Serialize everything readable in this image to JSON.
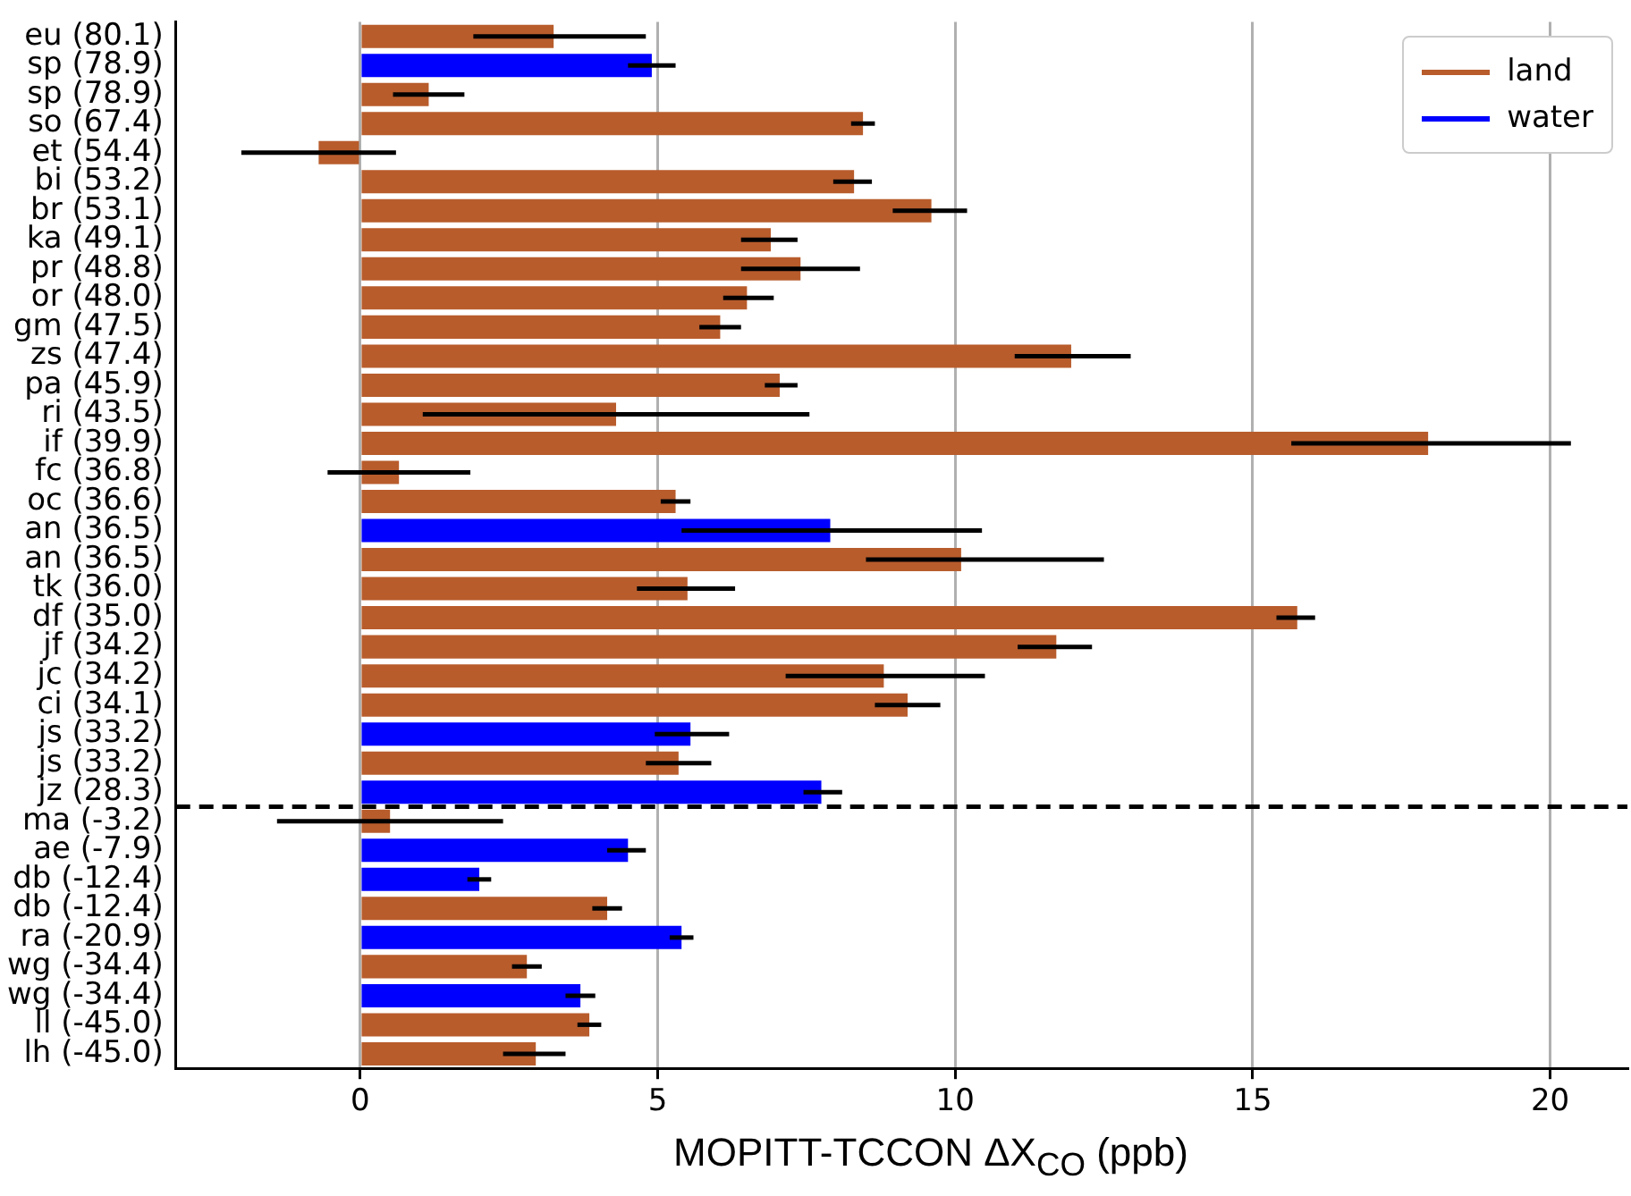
{
  "chart_data": {
    "type": "bar",
    "orientation": "horizontal",
    "xlabel": "MOPITT-TCCON  ΔX$_{CO}$ (ppb)",
    "categories": [
      "eu (80.1)",
      "sp (78.9)",
      "sp (78.9)",
      "so (67.4)",
      "et (54.4)",
      "bi (53.2)",
      "br (53.1)",
      "ka (49.1)",
      "pr (48.8)",
      "or (48.0)",
      "gm (47.5)",
      "zs (47.4)",
      "pa (45.9)",
      "ri (43.5)",
      "if (39.9)",
      "fc (36.8)",
      "oc (36.6)",
      "an (36.5)",
      "an (36.5)",
      "tk (36.0)",
      "df (35.0)",
      "jf (34.2)",
      "jc (34.2)",
      "ci (34.1)",
      "js (33.2)",
      "js (33.2)",
      "jz (28.3)",
      "ma (-3.2)",
      "ae (-7.9)",
      "db (-12.4)",
      "db (-12.4)",
      "ra (-20.9)",
      "wg (-34.4)",
      "wg (-34.4)",
      "ll (-45.0)",
      "lh (-45.0)"
    ],
    "series": [
      {
        "name": "land",
        "color": "#b85c2c",
        "values": [
          3.25,
          null,
          1.15,
          8.45,
          -0.7,
          8.3,
          9.6,
          6.9,
          7.4,
          6.5,
          6.05,
          11.95,
          7.05,
          4.3,
          17.95,
          0.65,
          5.3,
          null,
          10.1,
          5.5,
          15.75,
          11.7,
          8.8,
          9.2,
          null,
          5.35,
          null,
          0.5,
          null,
          null,
          4.15,
          null,
          2.8,
          null,
          3.85,
          2.95
        ],
        "errors": [
          [
            1.9,
            4.8
          ],
          null,
          [
            0.55,
            1.75
          ],
          [
            8.25,
            8.65
          ],
          [
            -2.0,
            0.6
          ],
          [
            7.95,
            8.6
          ],
          [
            8.95,
            10.2
          ],
          [
            6.4,
            7.35
          ],
          [
            6.4,
            8.4
          ],
          [
            6.1,
            6.95
          ],
          [
            5.7,
            6.4
          ],
          [
            11.0,
            12.95
          ],
          [
            6.8,
            7.35
          ],
          [
            1.05,
            7.55
          ],
          [
            15.65,
            20.35
          ],
          [
            -0.55,
            1.85
          ],
          [
            5.05,
            5.55
          ],
          null,
          [
            8.5,
            12.5
          ],
          [
            4.65,
            6.3
          ],
          [
            15.4,
            16.05
          ],
          [
            11.05,
            12.3
          ],
          [
            7.15,
            10.5
          ],
          [
            8.65,
            9.75
          ],
          null,
          [
            4.8,
            5.9
          ],
          null,
          [
            -1.4,
            2.4
          ],
          null,
          null,
          [
            3.9,
            4.4
          ],
          null,
          [
            2.55,
            3.05
          ],
          null,
          [
            3.65,
            4.05
          ],
          [
            2.4,
            3.45
          ]
        ]
      },
      {
        "name": "water",
        "color": "#0000ff",
        "values": [
          null,
          4.9,
          null,
          null,
          null,
          null,
          null,
          null,
          null,
          null,
          null,
          null,
          null,
          null,
          null,
          null,
          null,
          7.9,
          null,
          null,
          null,
          null,
          null,
          null,
          5.55,
          null,
          7.75,
          null,
          4.5,
          2.0,
          null,
          5.4,
          null,
          3.7,
          null,
          null
        ],
        "errors": [
          null,
          [
            4.5,
            5.3
          ],
          null,
          null,
          null,
          null,
          null,
          null,
          null,
          null,
          null,
          null,
          null,
          null,
          null,
          null,
          null,
          [
            5.4,
            10.45
          ],
          null,
          null,
          null,
          null,
          null,
          null,
          [
            4.95,
            6.2
          ],
          null,
          [
            7.45,
            8.1
          ],
          null,
          [
            4.15,
            4.8
          ],
          [
            1.8,
            2.2
          ],
          null,
          [
            5.2,
            5.6
          ],
          null,
          [
            3.45,
            3.95
          ],
          null,
          null
        ]
      }
    ],
    "xlim": [
      -3.1,
      21.3
    ],
    "xticks": [
      0,
      5,
      10,
      15,
      20
    ],
    "grid": "x",
    "legend": "top right",
    "ref_lines": [
      {
        "axis": "y",
        "value": "jz (28.3)",
        "color": "#000000",
        "line_style": "dashed"
      }
    ]
  }
}
